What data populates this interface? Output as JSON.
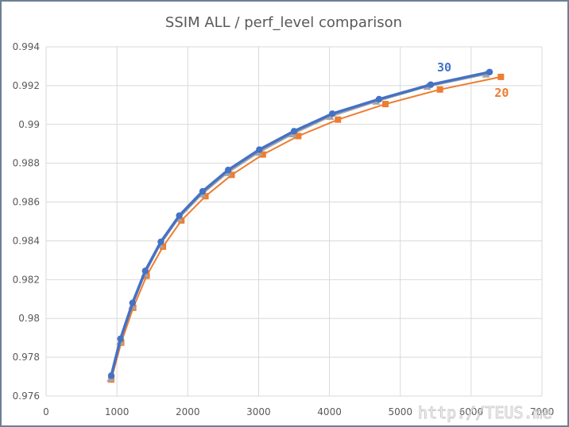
{
  "chart_data": {
    "type": "line",
    "title": "SSIM ALL / perf_level comparison",
    "xlabel": "",
    "ylabel": "",
    "xlim": [
      0,
      7000
    ],
    "ylim": [
      0.976,
      0.994
    ],
    "x_ticks": [
      0,
      1000,
      2000,
      3000,
      4000,
      5000,
      6000,
      7000
    ],
    "y_ticks": [
      0.976,
      0.978,
      0.98,
      0.982,
      0.984,
      0.986,
      0.988,
      0.99,
      0.992,
      0.994
    ],
    "y_tick_labels": [
      "0.976",
      "0.978",
      "0.98",
      "0.982",
      "0.984",
      "0.986",
      "0.988",
      "0.99",
      "0.992",
      "0.994"
    ],
    "grid": true,
    "legend": "none",
    "series": [
      {
        "name": "30",
        "color": "#4472C4",
        "marker": "circle",
        "x": [
          920,
          1050,
          1220,
          1400,
          1620,
          1880,
          2210,
          2570,
          3010,
          3500,
          4040,
          4700,
          5430,
          6260
        ],
        "y": [
          0.97705,
          0.97895,
          0.9808,
          0.98245,
          0.98395,
          0.9853,
          0.98655,
          0.98765,
          0.9887,
          0.98965,
          0.99055,
          0.9913,
          0.99205,
          0.9927
        ]
      },
      {
        "name": "",
        "color": "#A5A5A5",
        "marker": "triangle",
        "x": [
          910,
          1045,
          1215,
          1395,
          1610,
          1870,
          2200,
          2560,
          3000,
          3480,
          4010,
          4660,
          5380,
          6210
        ],
        "y": [
          0.9769,
          0.9788,
          0.98065,
          0.9823,
          0.9838,
          0.98515,
          0.9864,
          0.9875,
          0.98855,
          0.9895,
          0.9904,
          0.99118,
          0.99195,
          0.99258
        ]
      },
      {
        "name": "20",
        "color": "#ED7D31",
        "marker": "square",
        "x": [
          920,
          1060,
          1230,
          1420,
          1650,
          1910,
          2250,
          2620,
          3060,
          3560,
          4120,
          4790,
          5560,
          6420
        ],
        "y": [
          0.97685,
          0.97875,
          0.98055,
          0.9822,
          0.9837,
          0.98505,
          0.9863,
          0.9874,
          0.98845,
          0.9894,
          0.99025,
          0.99105,
          0.9918,
          0.99245
        ]
      }
    ]
  },
  "watermark": "http://TEUS.me"
}
